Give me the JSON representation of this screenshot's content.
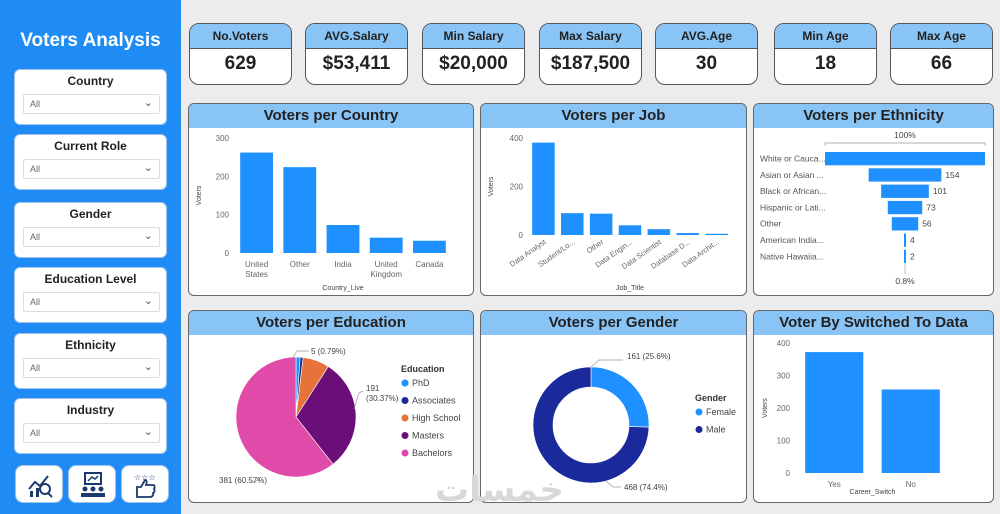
{
  "sidebar": {
    "title": "Voters Analysis",
    "filters": [
      {
        "label": "Country",
        "value": "All"
      },
      {
        "label": "Current Role",
        "value": "All"
      },
      {
        "label": "Gender",
        "value": "All"
      },
      {
        "label": "Education Level",
        "value": "All"
      },
      {
        "label": "Ethnicity",
        "value": "All"
      },
      {
        "label": "Industry",
        "value": "All"
      }
    ],
    "nav_icons": [
      "analytics-icon",
      "presentation-icon",
      "rating-icon"
    ]
  },
  "kpis": [
    {
      "label": "No.Voters",
      "value": "629"
    },
    {
      "label": "AVG.Salary",
      "value": "$53,411"
    },
    {
      "label": "Min Salary",
      "value": "$20,000"
    },
    {
      "label": "Max Salary",
      "value": "$187,500"
    },
    {
      "label": "AVG.Age",
      "value": "30"
    },
    {
      "label": "Min Age",
      "value": "18"
    },
    {
      "label": "Max Age",
      "value": "66"
    }
  ],
  "watermark": "خمسات",
  "chart_data": [
    {
      "id": "country",
      "type": "bar",
      "title": "Voters per Country",
      "xlabel": "Country_Live",
      "ylabel": "Voters",
      "categories": [
        "United States",
        "Other",
        "India",
        "United Kingdom",
        "Canada"
      ],
      "values": [
        262,
        224,
        73,
        40,
        32
      ],
      "ylim": [
        0,
        300
      ],
      "yticks": [
        0,
        100,
        200,
        300
      ],
      "color": "#1e90ff"
    },
    {
      "id": "job",
      "type": "bar",
      "title": "Voters per Job",
      "xlabel": "Job_Title",
      "ylabel": "Voters",
      "categories": [
        "Data Analyst",
        "Student/Lo...",
        "Other",
        "Data Engin...",
        "Data Scientist",
        "Database D...",
        "Data Archit..."
      ],
      "values": [
        381,
        90,
        88,
        40,
        24,
        8,
        5
      ],
      "ylim": [
        0,
        400
      ],
      "yticks": [
        0,
        200,
        400
      ],
      "color": "#1e90ff"
    },
    {
      "id": "ethnicity",
      "type": "bar",
      "title": "Voters per Ethnicity",
      "top_label": "100%",
      "bottom_label": "0.8%",
      "categories": [
        "White or Cauca...",
        "Asian or Asian ...",
        "Black or African...",
        "Hispanic or Lati...",
        "Other",
        "American India...",
        "Native Hawaiia..."
      ],
      "values": [
        339,
        154,
        101,
        73,
        56,
        4,
        2
      ],
      "labels": [
        "",
        "154",
        "101",
        "73",
        "56",
        "4",
        "2"
      ],
      "color": "#1e90ff"
    },
    {
      "id": "education",
      "type": "pie",
      "title": "Voters per Education",
      "legend_title": "Education",
      "categories": [
        "PhD",
        "Associates",
        "High School",
        "Masters",
        "Bachelors"
      ],
      "values": [
        7,
        5,
        45,
        191,
        381
      ],
      "colors": [
        "#1e90ff",
        "#1a2a8c",
        "#e8733a",
        "#6b0f78",
        "#e04aa9"
      ],
      "labels": [
        "",
        "5 (0.79%)",
        "",
        "191\n(30.37%)",
        "381 (60.57%)"
      ]
    },
    {
      "id": "gender",
      "type": "pie",
      "title": "Voters per Gender",
      "legend_title": "Gender",
      "categories": [
        "Female",
        "Male"
      ],
      "values": [
        161,
        468
      ],
      "colors": [
        "#1e90ff",
        "#1a2a9a"
      ],
      "labels": [
        "161 (25.6%)",
        "468 (74.4%)"
      ]
    },
    {
      "id": "switched",
      "type": "bar",
      "title": "Voter By Switched To Data",
      "xlabel": "Career_Switch",
      "ylabel": "Voters",
      "categories": [
        "Yes",
        "No"
      ],
      "values": [
        372,
        257
      ],
      "ylim": [
        0,
        400
      ],
      "yticks": [
        0,
        100,
        200,
        300,
        400
      ],
      "color": "#1e90ff"
    }
  ]
}
